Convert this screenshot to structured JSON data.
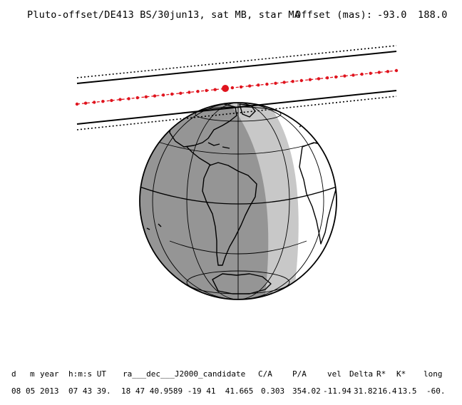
{
  "header": {
    "title": "Pluto-offset/DE413 BS/30jun13, sat MB, star MA",
    "offset_label": "Offset (mas):",
    "offset_x": "-93.0",
    "offset_y": "188.0"
  },
  "table": {
    "headers": [
      "d",
      "m",
      "year",
      "h:m:s UT",
      "ra___dec___J2000_candidate",
      "C/A",
      "P/A",
      "vel",
      "Delta",
      "R*",
      "K*",
      "long"
    ],
    "values": [
      "08",
      "05",
      "2013",
      "07 43 39.",
      "18 47 40.9589 -19 41  41.665",
      "0.303",
      "354.02",
      "-11.94",
      "31.82",
      "16.4",
      "13.5",
      "-60."
    ]
  },
  "colors": {
    "night": "#959595",
    "twilight": "#c8c8c8",
    "day": "#ffffff",
    "track": "#e0141e",
    "lines": "#000000"
  }
}
